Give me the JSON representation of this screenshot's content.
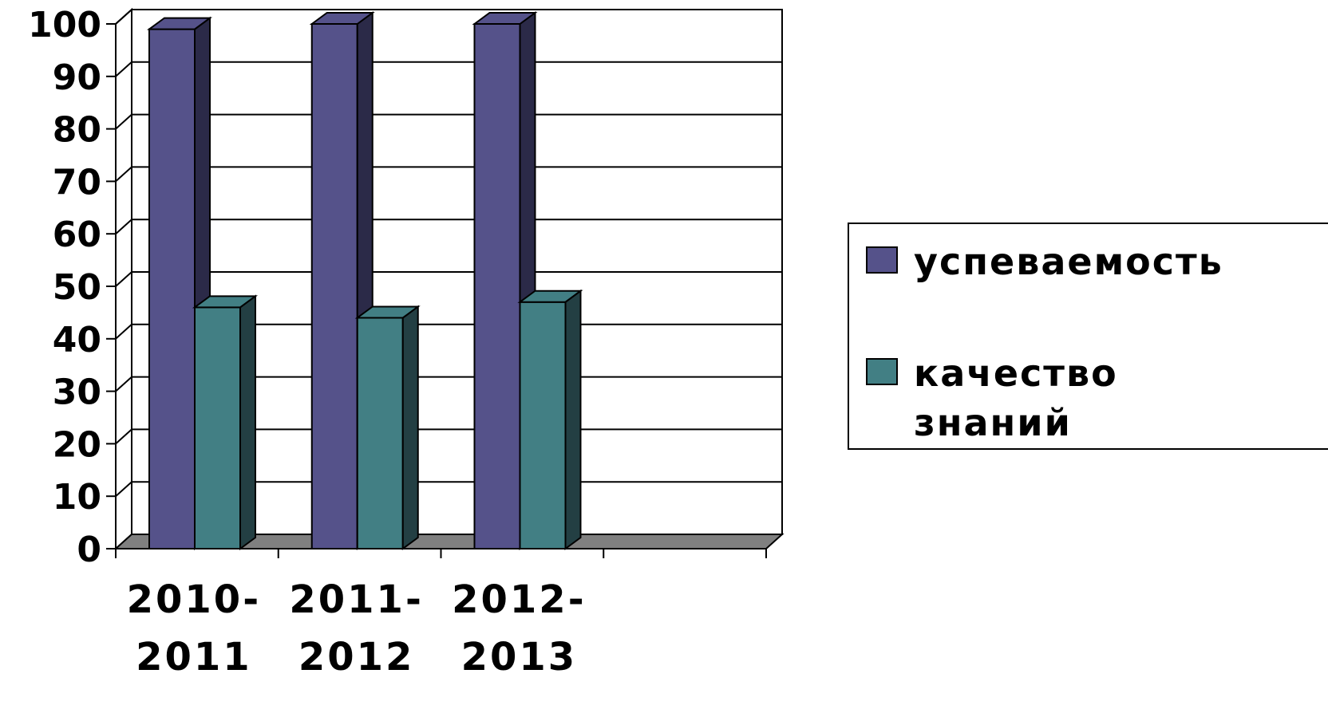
{
  "chart_data": {
    "type": "bar",
    "categories": [
      [
        "2010-",
        "2011"
      ],
      [
        "2011-",
        "2012"
      ],
      [
        "2012-",
        "2013"
      ],
      [
        "",
        ""
      ]
    ],
    "series": [
      {
        "name": "успеваемость",
        "values": [
          99,
          100,
          100,
          null
        ],
        "color": "#55528a",
        "side_color": "#2b2a48"
      },
      {
        "name": "качество знаний",
        "values": [
          46,
          44,
          47,
          null
        ],
        "color": "#427f84",
        "side_color": "#233f43"
      }
    ],
    "legend_lines": [
      [
        "успеваемость"
      ],
      [
        "качество",
        "знаний"
      ]
    ],
    "ylim": [
      0,
      100
    ],
    "yticks": [
      0,
      10,
      20,
      30,
      40,
      50,
      60,
      70,
      80,
      90,
      100
    ],
    "grid": true,
    "legend_position": "right",
    "floor_color": "#808080"
  }
}
